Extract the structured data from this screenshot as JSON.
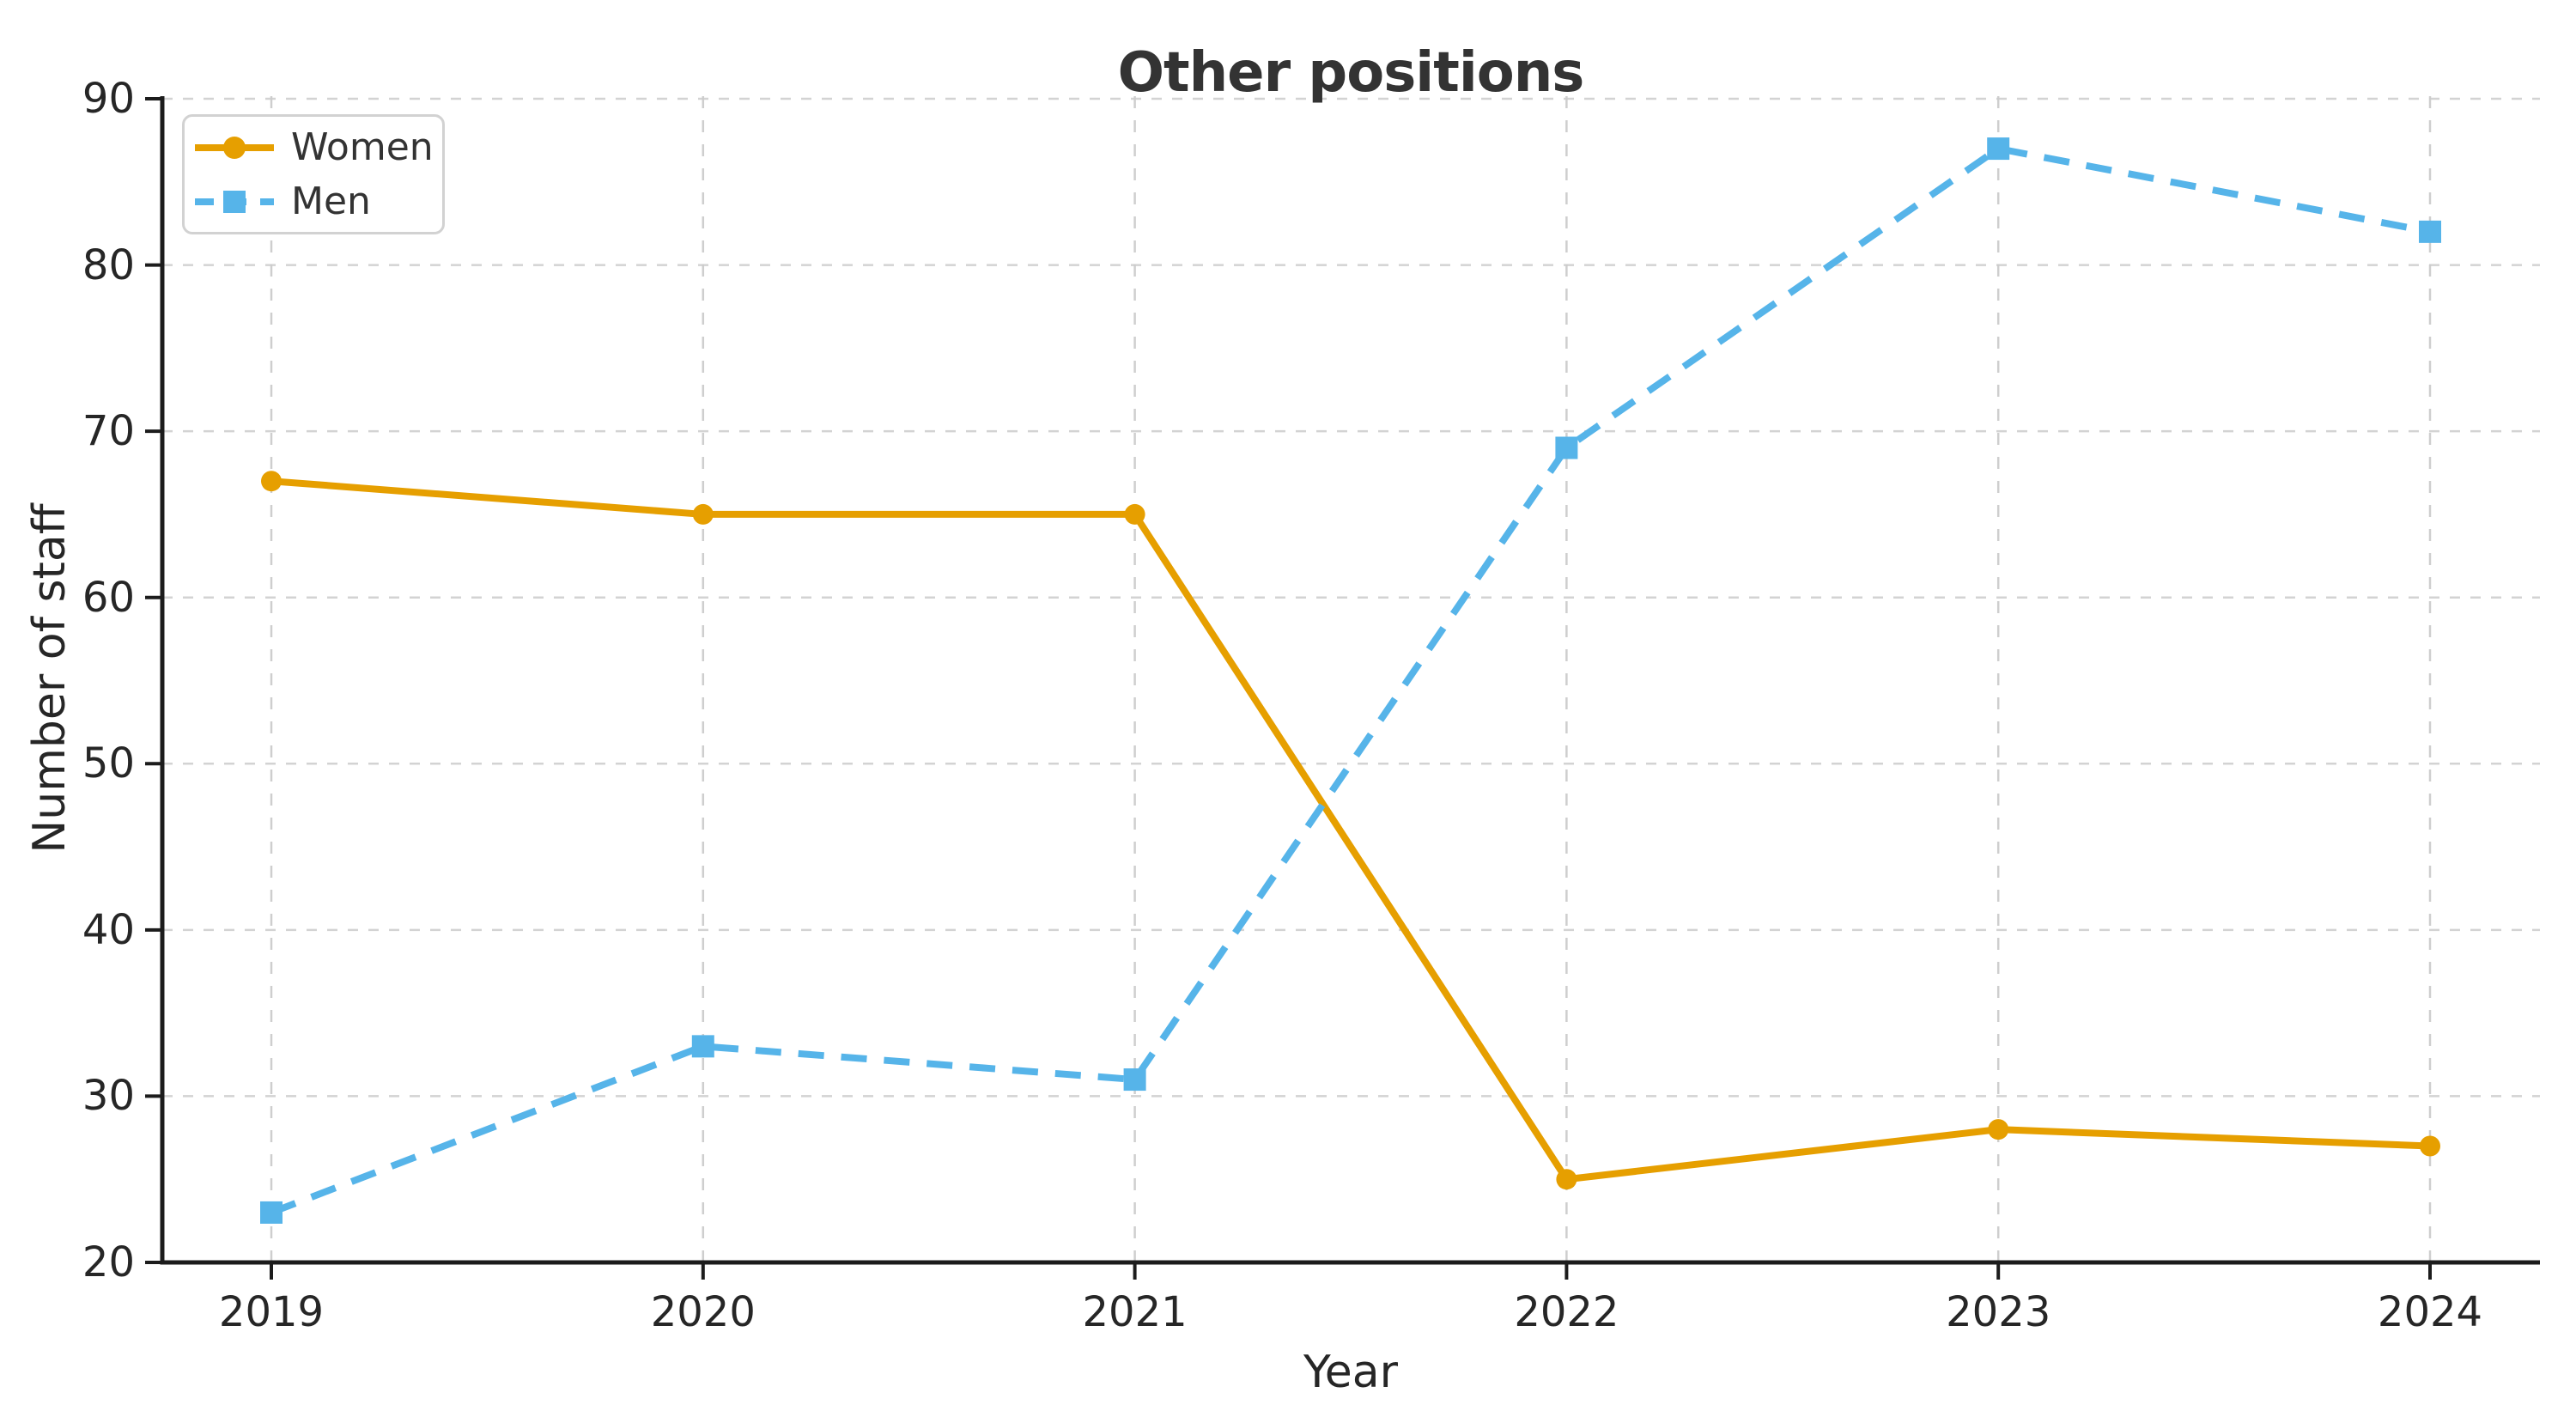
{
  "chart_data": {
    "type": "line",
    "title": "Other positions",
    "xlabel": "Year",
    "ylabel": "Number of staff",
    "categories": [
      "2019",
      "2020",
      "2021",
      "2022",
      "2023",
      "2024"
    ],
    "series": [
      {
        "name": "Women",
        "values": [
          67,
          65,
          65,
          25,
          28,
          27
        ],
        "color": "#E69F00",
        "line_style": "solid",
        "marker": "circle"
      },
      {
        "name": "Men",
        "values": [
          23,
          33,
          31,
          69,
          87,
          82
        ],
        "color": "#56B4E9",
        "line_style": "dashed",
        "marker": "square"
      }
    ],
    "ylim": [
      20,
      90
    ],
    "yticks": [
      20,
      30,
      40,
      50,
      60,
      70,
      80,
      90
    ],
    "grid": true,
    "legend_position": "upper left",
    "colors": {
      "axis": "#1c1c1c",
      "grid": "#cccccc",
      "text": "#262626",
      "title": "#333333",
      "background": "#ffffff"
    }
  }
}
